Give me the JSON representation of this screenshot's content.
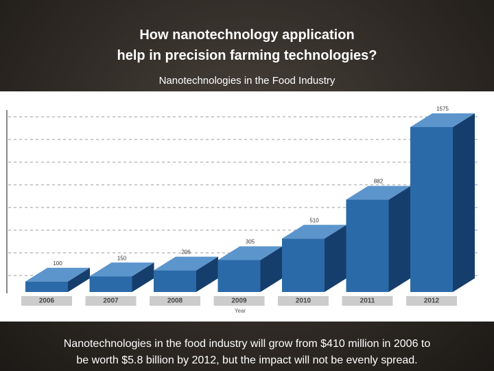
{
  "slide": {
    "title_lines": [
      "How nanotechnology application",
      "help in precision farming technologies?"
    ],
    "caption_lines": [
      "Nanotechnologies in the food industry will grow from $410 million in 2006 to",
      "be worth $5.8 billion by 2012, but the impact will not be evenly spread."
    ]
  },
  "chart_data": {
    "type": "bar",
    "title": "Nanotechnologies in the Food Industry",
    "x_label": "Year",
    "categories": [
      "2006",
      "2007",
      "2008",
      "2009",
      "2010",
      "2011",
      "2012"
    ],
    "values": [
      100,
      150,
      206,
      305,
      510,
      882,
      1575
    ],
    "color": "#2a6aa8"
  }
}
